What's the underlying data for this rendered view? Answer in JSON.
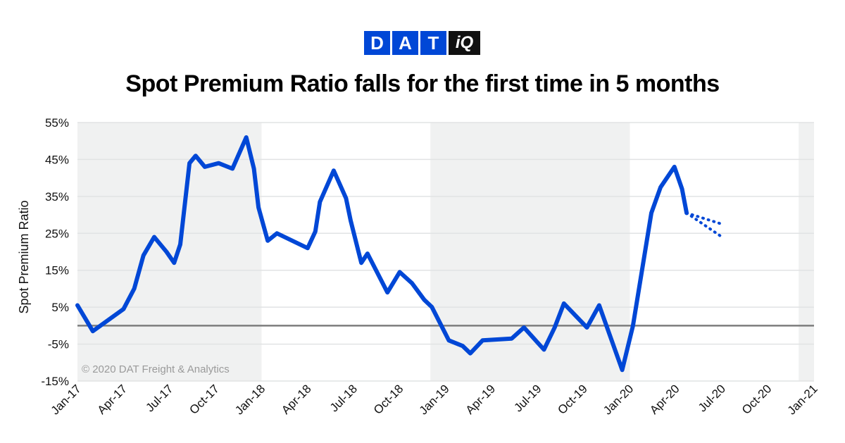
{
  "logo": {
    "letters": [
      "D",
      "A",
      "T"
    ],
    "suffix": "iQ",
    "color": "#0047d6"
  },
  "header": {
    "title": "Spot Premium Ratio falls for the first time in 5 months"
  },
  "copyright": "© 2020 DAT Freight & Analytics",
  "chart_data": {
    "type": "line",
    "title": "Spot Premium Ratio falls for the first time in 5 months",
    "ylabel": "Spot Premium Ratio",
    "xlabel": "",
    "ylim": [
      -15,
      55
    ],
    "yticks": [
      "55%",
      "45%",
      "35%",
      "25%",
      "15%",
      "5%",
      "-5%",
      "-15%"
    ],
    "ytick_values": [
      55,
      45,
      35,
      25,
      15,
      5,
      -5,
      -15
    ],
    "xticks": [
      "Jan-17",
      "Apr-17",
      "Jul-17",
      "Oct-17",
      "Jan-18",
      "Apr-18",
      "Jul-18",
      "Oct-18",
      "Jan-19",
      "Apr-19",
      "Jul-19",
      "Oct-19",
      "Jan-20",
      "Apr-20",
      "Jul-20",
      "Oct-20",
      "Jan-21"
    ],
    "xtick_months": [
      0,
      3,
      6,
      9,
      12,
      15,
      18,
      21,
      24,
      27,
      30,
      33,
      36,
      39,
      42,
      45,
      48
    ],
    "zero_line": 0,
    "line_color": "#0047d6",
    "shaded_band_color": "#f0f1f1",
    "shaded_ranges_months": [
      [
        0,
        12
      ],
      [
        23,
        36
      ],
      [
        47,
        48
      ]
    ],
    "series": [
      {
        "points": [
          [
            0,
            5.5
          ],
          [
            1,
            -1.5
          ],
          [
            3,
            4.5
          ],
          [
            3.7,
            10
          ],
          [
            4.3,
            19
          ],
          [
            5,
            24
          ],
          [
            5.8,
            20
          ],
          [
            6.3,
            17
          ],
          [
            6.7,
            22
          ],
          [
            7.3,
            44
          ],
          [
            7.7,
            46
          ],
          [
            8.3,
            43
          ],
          [
            9.2,
            44
          ],
          [
            10.1,
            42.5
          ],
          [
            11,
            51
          ],
          [
            11.5,
            42.5
          ],
          [
            11.8,
            32
          ],
          [
            12.4,
            23
          ],
          [
            13,
            25
          ],
          [
            15,
            21
          ],
          [
            15.5,
            25.5
          ],
          [
            15.8,
            33.5
          ],
          [
            16.7,
            42
          ],
          [
            17.5,
            34.5
          ],
          [
            17.8,
            28.5
          ],
          [
            18.5,
            17
          ],
          [
            18.9,
            19.5
          ],
          [
            20.2,
            9
          ],
          [
            21,
            14.5
          ],
          [
            21.8,
            11.5
          ],
          [
            22.6,
            7
          ],
          [
            23.1,
            5
          ],
          [
            24.2,
            -4
          ],
          [
            25.1,
            -5.5
          ],
          [
            25.6,
            -7.5
          ],
          [
            26.4,
            -4
          ],
          [
            28.3,
            -3.5
          ],
          [
            29.1,
            -0.5
          ],
          [
            30.4,
            -6.5
          ],
          [
            31.1,
            -0.5
          ],
          [
            31.7,
            6
          ],
          [
            33.2,
            -0.5
          ],
          [
            34,
            5.5
          ],
          [
            35.5,
            -12
          ],
          [
            36.2,
            0
          ],
          [
            37.4,
            30.5
          ],
          [
            38,
            37.5
          ],
          [
            38.9,
            43
          ],
          [
            39.4,
            37
          ],
          [
            39.7,
            30.5
          ]
        ]
      },
      {
        "forecast": true,
        "points": [
          [
            39.7,
            30.5
          ],
          [
            42,
            27.5
          ]
        ]
      },
      {
        "forecast": true,
        "points": [
          [
            39.7,
            30.5
          ],
          [
            42,
            24
          ]
        ]
      }
    ]
  }
}
